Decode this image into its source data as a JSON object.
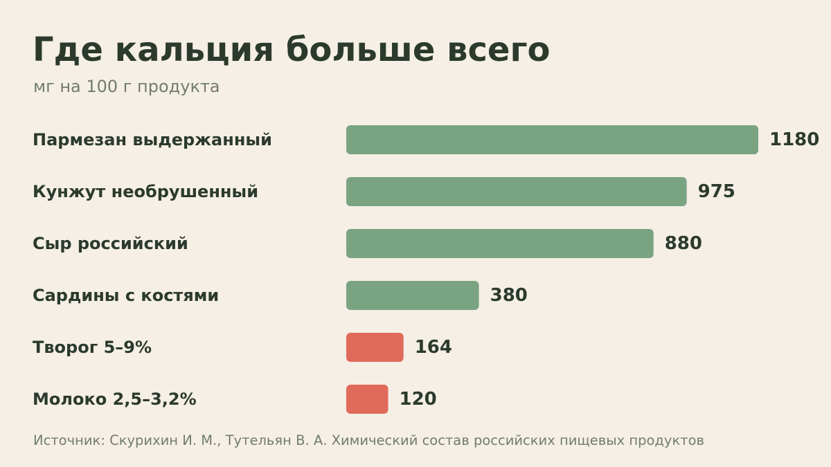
{
  "header": {
    "title": "Где кальция больше всего",
    "subtitle": "мг на 100 г продукта"
  },
  "footer": {
    "source": "Источник: Скурихин И. М., Тутельян В. А. Химический состав российских пищевых продуктов"
  },
  "colors": {
    "background": "#f5efe6",
    "text": "#2c3a2e",
    "muted_text": "#737b72",
    "bar_high": "#7aa382",
    "bar_low": "#e06b5b"
  },
  "chart_data": {
    "type": "bar",
    "orientation": "horizontal",
    "categories": [
      "Пармезан выдержанный",
      "Кунжут необрушенный",
      "Сыр российский",
      "Сардины с костями",
      "Творог 5–9%",
      "Молоко 2,5–3,2%"
    ],
    "values": [
      1180,
      975,
      880,
      380,
      164,
      120
    ],
    "value_labels": [
      "1180",
      "975",
      "880",
      "380",
      "164",
      "120"
    ],
    "bar_colors": [
      "#7aa382",
      "#7aa382",
      "#7aa382",
      "#7aa382",
      "#e06b5b",
      "#e06b5b"
    ],
    "xlim": [
      0,
      1180
    ],
    "grid": false,
    "legend": "none"
  }
}
